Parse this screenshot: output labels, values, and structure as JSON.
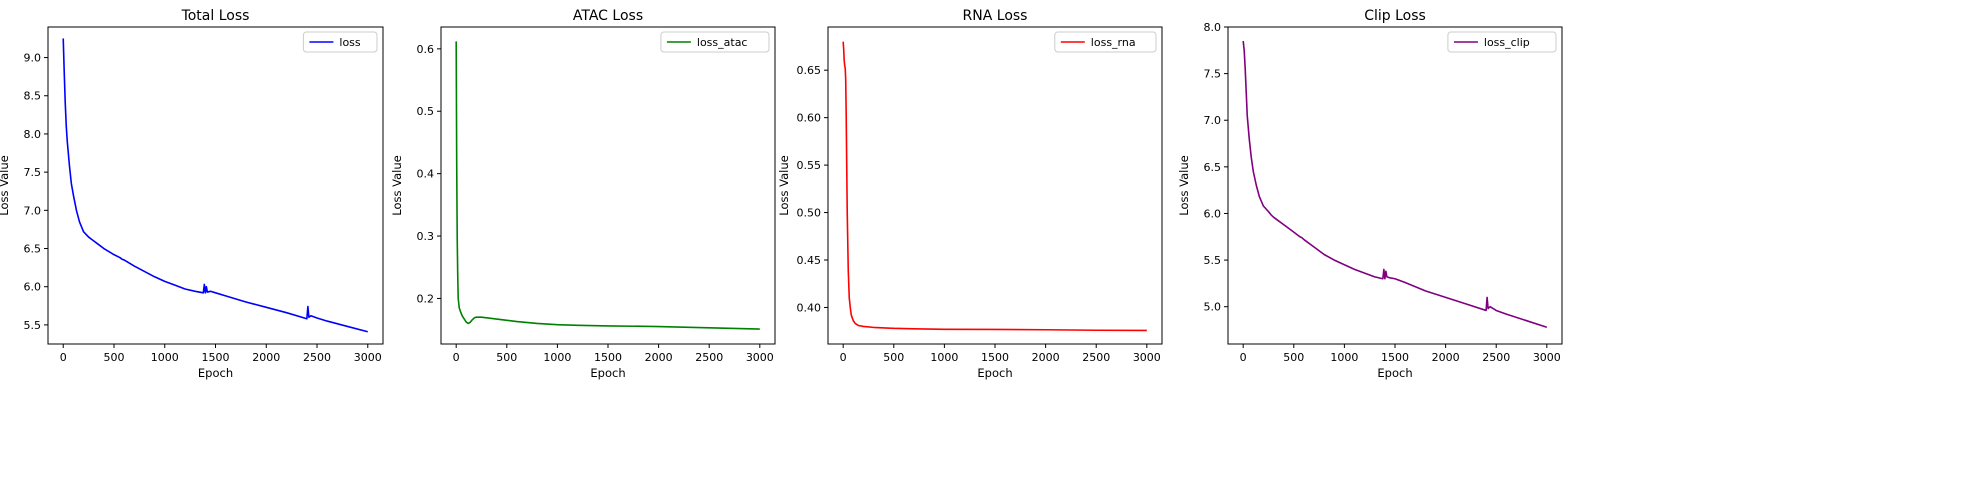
{
  "chart_data": [
    {
      "type": "line",
      "title": "Total Loss",
      "xlabel": "Epoch",
      "ylabel": "Loss Value",
      "xlim": [
        -150,
        3150
      ],
      "ylim": [
        5.25,
        9.4
      ],
      "xticks": [
        0,
        500,
        1000,
        1500,
        2000,
        2500,
        3000
      ],
      "yticks": [
        5.5,
        6.0,
        6.5,
        7.0,
        7.5,
        8.0,
        8.5,
        9.0
      ],
      "ytick_labels": [
        "5.5",
        "6.0",
        "6.5",
        "7.0",
        "7.5",
        "8.0",
        "8.5",
        "9.0"
      ],
      "legend_position": "top-right",
      "grid": false,
      "series": [
        {
          "name": "loss",
          "color": "#0000ff",
          "x": [
            0,
            10,
            20,
            30,
            40,
            60,
            80,
            100,
            130,
            160,
            200,
            250,
            280,
            300,
            350,
            400,
            500,
            560,
            580,
            600,
            700,
            800,
            900,
            1000,
            1100,
            1200,
            1300,
            1380,
            1390,
            1400,
            1410,
            1420,
            1450,
            1500,
            1600,
            1800,
            2000,
            2200,
            2400,
            2410,
            2420,
            2440,
            2500,
            2600,
            2800,
            3000
          ],
          "y": [
            9.25,
            8.8,
            8.4,
            8.1,
            7.9,
            7.6,
            7.35,
            7.2,
            7.0,
            6.85,
            6.72,
            6.65,
            6.62,
            6.6,
            6.55,
            6.5,
            6.42,
            6.38,
            6.36,
            6.35,
            6.27,
            6.2,
            6.13,
            6.07,
            6.02,
            5.97,
            5.94,
            5.92,
            6.03,
            5.92,
            6.0,
            5.93,
            5.94,
            5.92,
            5.88,
            5.8,
            5.73,
            5.66,
            5.58,
            5.74,
            5.6,
            5.62,
            5.59,
            5.55,
            5.48,
            5.41
          ]
        }
      ]
    },
    {
      "type": "line",
      "title": "ATAC Loss",
      "xlabel": "Epoch",
      "ylabel": "Loss Value",
      "xlim": [
        -150,
        3150
      ],
      "ylim": [
        0.127,
        0.635
      ],
      "xticks": [
        0,
        500,
        1000,
        1500,
        2000,
        2500,
        3000
      ],
      "yticks": [
        0.2,
        0.3,
        0.4,
        0.5,
        0.6
      ],
      "ytick_labels": [
        "0.2",
        "0.3",
        "0.4",
        "0.5",
        "0.6"
      ],
      "legend_position": "top-right",
      "grid": false,
      "series": [
        {
          "name": "loss_atac",
          "color": "#008000",
          "x": [
            0,
            5,
            10,
            15,
            20,
            30,
            40,
            60,
            80,
            100,
            120,
            140,
            160,
            180,
            200,
            250,
            300,
            400,
            500,
            600,
            800,
            1000,
            1200,
            1500,
            2000,
            2500,
            3000
          ],
          "y": [
            0.612,
            0.42,
            0.3,
            0.24,
            0.2,
            0.185,
            0.18,
            0.172,
            0.167,
            0.162,
            0.16,
            0.162,
            0.166,
            0.169,
            0.17,
            0.17,
            0.169,
            0.167,
            0.165,
            0.163,
            0.16,
            0.158,
            0.157,
            0.156,
            0.155,
            0.153,
            0.151
          ]
        }
      ]
    },
    {
      "type": "line",
      "title": "RNA Loss",
      "xlabel": "Epoch",
      "ylabel": "Loss Value",
      "xlim": [
        -150,
        3150
      ],
      "ylim": [
        0.3615,
        0.6955
      ],
      "xticks": [
        0,
        500,
        1000,
        1500,
        2000,
        2500,
        3000
      ],
      "yticks": [
        0.4,
        0.45,
        0.5,
        0.55,
        0.6,
        0.65
      ],
      "ytick_labels": [
        "0.40",
        "0.45",
        "0.50",
        "0.55",
        "0.60",
        "0.65"
      ],
      "legend_position": "top-right",
      "grid": false,
      "series": [
        {
          "name": "loss_rna",
          "color": "#ff0000",
          "x": [
            0,
            5,
            10,
            15,
            20,
            25,
            30,
            35,
            40,
            50,
            60,
            70,
            80,
            100,
            120,
            150,
            200,
            300,
            500,
            700,
            1000,
            1500,
            2000,
            2500,
            3000
          ],
          "y": [
            0.68,
            0.672,
            0.66,
            0.655,
            0.652,
            0.64,
            0.6,
            0.55,
            0.5,
            0.44,
            0.41,
            0.4,
            0.392,
            0.386,
            0.383,
            0.381,
            0.38,
            0.379,
            0.378,
            0.3775,
            0.377,
            0.3768,
            0.3765,
            0.376,
            0.3758
          ]
        }
      ]
    },
    {
      "type": "line",
      "title": "Clip Loss",
      "xlabel": "Epoch",
      "ylabel": "Loss Value",
      "xlim": [
        -150,
        3150
      ],
      "ylim": [
        4.6,
        8.0
      ],
      "xticks": [
        0,
        500,
        1000,
        1500,
        2000,
        2500,
        3000
      ],
      "yticks": [
        5.0,
        5.5,
        6.0,
        6.5,
        7.0,
        7.5,
        8.0
      ],
      "ytick_labels": [
        "5.0",
        "5.5",
        "6.0",
        "6.5",
        "7.0",
        "7.5",
        "8.0"
      ],
      "legend_position": "top-right",
      "grid": false,
      "series": [
        {
          "name": "loss_clip",
          "color": "#800080",
          "x": [
            0,
            10,
            20,
            30,
            40,
            60,
            80,
            100,
            130,
            160,
            200,
            250,
            280,
            300,
            350,
            400,
            500,
            560,
            580,
            600,
            700,
            800,
            900,
            1000,
            1100,
            1200,
            1300,
            1380,
            1390,
            1400,
            1410,
            1420,
            1450,
            1500,
            1600,
            1800,
            2000,
            2200,
            2400,
            2410,
            2420,
            2440,
            2500,
            2600,
            2800,
            3000
          ],
          "y": [
            7.85,
            7.75,
            7.55,
            7.3,
            7.05,
            6.8,
            6.6,
            6.45,
            6.3,
            6.18,
            6.08,
            6.02,
            5.98,
            5.96,
            5.92,
            5.88,
            5.8,
            5.75,
            5.74,
            5.72,
            5.64,
            5.56,
            5.5,
            5.45,
            5.4,
            5.36,
            5.32,
            5.3,
            5.4,
            5.3,
            5.38,
            5.32,
            5.31,
            5.3,
            5.26,
            5.17,
            5.1,
            5.03,
            4.96,
            5.1,
            4.98,
            5.0,
            4.96,
            4.92,
            4.85,
            4.78
          ]
        }
      ]
    }
  ]
}
